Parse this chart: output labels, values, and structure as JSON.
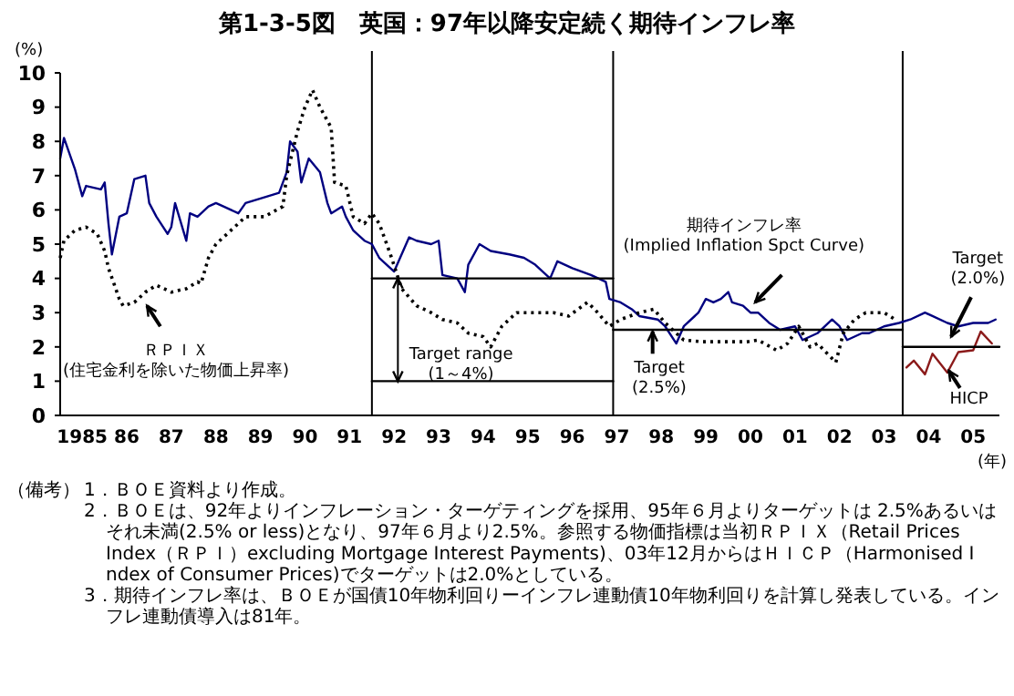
{
  "chart_data": {
    "type": "line",
    "title": "第1-3-5図　英国：97年以降安定続く期待インフレ率",
    "ylabel": "(%)",
    "xlabel": "(年)",
    "xlim": [
      "1985-01",
      "2006-02"
    ],
    "xticks": [
      {
        "value": "1985-07",
        "label": "1985"
      },
      {
        "value": "1986-07",
        "label": "86"
      },
      {
        "value": "1987-07",
        "label": "87"
      },
      {
        "value": "1988-07",
        "label": "88"
      },
      {
        "value": "1989-07",
        "label": "89"
      },
      {
        "value": "1990-07",
        "label": "90"
      },
      {
        "value": "1991-07",
        "label": "91"
      },
      {
        "value": "1992-07",
        "label": "92"
      },
      {
        "value": "1993-07",
        "label": "93"
      },
      {
        "value": "1994-07",
        "label": "94"
      },
      {
        "value": "1995-07",
        "label": "95"
      },
      {
        "value": "1996-07",
        "label": "96"
      },
      {
        "value": "1997-07",
        "label": "97"
      },
      {
        "value": "1998-07",
        "label": "98"
      },
      {
        "value": "1999-07",
        "label": "99"
      },
      {
        "value": "2000-07",
        "label": "00"
      },
      {
        "value": "2001-07",
        "label": "01"
      },
      {
        "value": "2002-07",
        "label": "02"
      },
      {
        "value": "2003-07",
        "label": "03"
      },
      {
        "value": "2004-07",
        "label": "04"
      },
      {
        "value": "2005-07",
        "label": "05"
      }
    ],
    "ylim": [
      0,
      10
    ],
    "yticks": [
      0,
      1,
      2,
      3,
      4,
      5,
      6,
      7,
      8,
      9,
      10
    ],
    "series": [
      {
        "color": "#000080",
        "line_style": "solid",
        "x": [
          "1985-01",
          "1985-02",
          "1985-05",
          "1985-07",
          "1985-08",
          "1985-12",
          "1986-01",
          "1986-02",
          "1986-03",
          "1986-05",
          "1986-07",
          "1986-09",
          "1986-12",
          "1987-01",
          "1987-03",
          "1987-06",
          "1987-07",
          "1987-08",
          "1987-11",
          "1987-12",
          "1988-02",
          "1988-05",
          "1988-07",
          "1988-09",
          "1989-01",
          "1989-03",
          "1989-06",
          "1989-09",
          "1989-12",
          "1990-02",
          "1990-03",
          "1990-05",
          "1990-06",
          "1990-08",
          "1990-11",
          "1991-01",
          "1991-02",
          "1991-05",
          "1991-06",
          "1991-08",
          "1991-11",
          "1992-01",
          "1992-03",
          "1992-05",
          "1992-07",
          "1992-11",
          "1993-01",
          "1993-05",
          "1993-07",
          "1993-08",
          "1993-12",
          "1994-02",
          "1994-03",
          "1994-06",
          "1994-09",
          "1995-02",
          "1995-06",
          "1995-09",
          "1996-01",
          "1996-03",
          "1996-07",
          "1996-12",
          "1997-04",
          "1997-05",
          "1997-08",
          "1997-11",
          "1998-01",
          "1998-06",
          "1998-08",
          "1998-11",
          "1999-01",
          "1999-05",
          "1999-07",
          "1999-09",
          "1999-11",
          "2000-01",
          "2000-02",
          "2000-05",
          "2000-07",
          "2000-09",
          "2000-12",
          "2001-03",
          "2001-07",
          "2001-09",
          "2002-01",
          "2002-05",
          "2002-07",
          "2002-09",
          "2003-01",
          "2003-03",
          "2003-07",
          "2003-11",
          "2004-02",
          "2004-06",
          "2004-08",
          "2004-12",
          "2005-03",
          "2005-07",
          "2005-11",
          "2006-01"
        ],
        "values": [
          7.5,
          8.1,
          7.2,
          6.4,
          6.7,
          6.6,
          6.8,
          5.6,
          4.7,
          5.8,
          5.9,
          6.9,
          7.0,
          6.2,
          5.8,
          5.3,
          5.5,
          6.2,
          5.1,
          5.9,
          5.8,
          6.1,
          6.2,
          6.1,
          5.9,
          6.2,
          6.3,
          6.4,
          6.5,
          7.1,
          8.0,
          7.7,
          6.8,
          7.5,
          7.1,
          6.2,
          5.9,
          6.1,
          5.8,
          5.4,
          5.1,
          5.0,
          4.6,
          4.4,
          4.2,
          5.2,
          5.1,
          5.0,
          5.1,
          4.1,
          4.0,
          3.6,
          4.4,
          5.0,
          4.8,
          4.7,
          4.6,
          4.4,
          4.0,
          4.5,
          4.3,
          4.1,
          3.9,
          3.4,
          3.3,
          3.1,
          2.9,
          2.8,
          2.6,
          2.1,
          2.6,
          3.0,
          3.4,
          3.3,
          3.4,
          3.6,
          3.3,
          3.2,
          3.0,
          3.0,
          2.7,
          2.5,
          2.6,
          2.2,
          2.4,
          2.8,
          2.6,
          2.2,
          2.4,
          2.4,
          2.6,
          2.7,
          2.8,
          3.0,
          2.9,
          2.7,
          2.6,
          2.7,
          2.7,
          2.8
        ]
      },
      {
        "color": "#000000",
        "line_style": "dotted",
        "x": [
          "1985-01",
          "1985-02",
          "1985-05",
          "1985-08",
          "1985-11",
          "1986-01",
          "1986-02",
          "1986-05",
          "1986-06",
          "1986-09",
          "1986-12",
          "1987-03",
          "1987-07",
          "1987-11",
          "1988-02",
          "1988-03",
          "1988-05",
          "1988-07",
          "1988-12",
          "1989-03",
          "1989-08",
          "1990-01",
          "1990-02",
          "1990-05",
          "1990-07",
          "1990-09",
          "1990-11",
          "1991-02",
          "1991-03",
          "1991-06",
          "1991-08",
          "1991-11",
          "1992-01",
          "1992-03",
          "1992-06",
          "1992-09",
          "1993-01",
          "1993-05",
          "1993-08",
          "1993-12",
          "1994-03",
          "1994-07",
          "1994-09",
          "1994-12",
          "1995-04",
          "1995-09",
          "1996-02",
          "1996-06",
          "1996-11",
          "1997-01",
          "1997-05",
          "1997-08",
          "1998-01",
          "1998-05",
          "1998-08",
          "1999-01",
          "1999-06",
          "1999-11",
          "2000-06",
          "2000-09",
          "2001-02",
          "2001-05",
          "2001-08",
          "2001-11",
          "2002-01",
          "2002-06",
          "2002-08",
          "2002-11",
          "2003-02",
          "2003-07",
          "2003-10"
        ],
        "values": [
          4.6,
          5.1,
          5.4,
          5.5,
          5.3,
          4.8,
          4.3,
          3.4,
          3.2,
          3.3,
          3.6,
          3.8,
          3.6,
          3.7,
          3.9,
          3.85,
          4.6,
          5.0,
          5.5,
          5.8,
          5.8,
          6.1,
          7.0,
          8.3,
          9.0,
          9.5,
          9.0,
          8.4,
          6.8,
          6.7,
          5.8,
          5.6,
          5.9,
          5.6,
          4.7,
          3.7,
          3.2,
          3.0,
          2.8,
          2.7,
          2.4,
          2.3,
          2.0,
          2.6,
          3.0,
          3.0,
          3.0,
          2.9,
          3.3,
          3.1,
          2.6,
          2.8,
          3.0,
          3.1,
          2.7,
          2.2,
          2.15,
          2.15,
          2.15,
          2.2,
          1.9,
          2.1,
          2.6,
          2.0,
          2.1,
          1.55,
          2.4,
          2.8,
          3.0,
          3.0,
          2.8
        ]
      },
      {
        "color": "#8b1a1a",
        "line_style": "solid",
        "x": [
          "2004-01",
          "2004-03",
          "2004-06",
          "2004-08",
          "2004-12",
          "2005-03",
          "2005-07",
          "2005-09",
          "2005-12"
        ],
        "values": [
          1.4,
          1.6,
          1.2,
          1.8,
          1.25,
          1.85,
          1.9,
          2.45,
          2.1
        ]
      },
      {
        "color": "#000000",
        "line_style": "solid",
        "x": [
          "1992-01",
          "1997-06"
        ],
        "values": [
          4,
          4
        ]
      },
      {
        "color": "#000000",
        "line_style": "solid",
        "x": [
          "1992-01",
          "1997-06"
        ],
        "values": [
          1,
          1
        ]
      },
      {
        "color": "#000000",
        "line_style": "solid",
        "x": [
          "1997-06",
          "2003-12"
        ],
        "values": [
          2.5,
          2.5
        ]
      },
      {
        "color": "#000000",
        "line_style": "solid",
        "x": [
          "2003-12",
          "2006-02"
        ],
        "values": [
          2,
          2
        ]
      }
    ],
    "ref_lines": [
      {
        "axis": "x",
        "value": "1992-01"
      },
      {
        "axis": "x",
        "value": "1997-06"
      },
      {
        "axis": "x",
        "value": "2003-12"
      }
    ],
    "annotations": [
      "ＲＰＩＸ\n(住宅金利を除いた物価上昇率)",
      "期待インフレ率\n(Implied Inflation Spct Curve)",
      {
        "text": "Target range\n(1～4%)",
        "x": "1992-08",
        "y": 1
      },
      "Target\n(2.5%)",
      "Target\n(2.0%)",
      "HICP",
      "（備考）",
      "1．ＢＯＥ資料より作成。",
      "2．ＢＯＥは、92年よりインフレーション・ターゲティングを採用、95年６月よりターゲットは 2.5%あるいはそれ未満(2.5% or less)となり、97年６月より2.5%。参照する物価指標は当初ＲＰＩＸ（Retail Prices Index（ＲＰＩ）excluding Mortgage Interest Payments)、03年12月からはＨＩＣＰ（Harmonised Index of Consumer Prices)でターゲットは2.0%としている。",
      "3．期待インフレ率は、ＢＯＥが国債10年物利回りーインフレ連動債10年物利回りを計算し発表している。インフレ連動債導入は81年。"
    ]
  }
}
